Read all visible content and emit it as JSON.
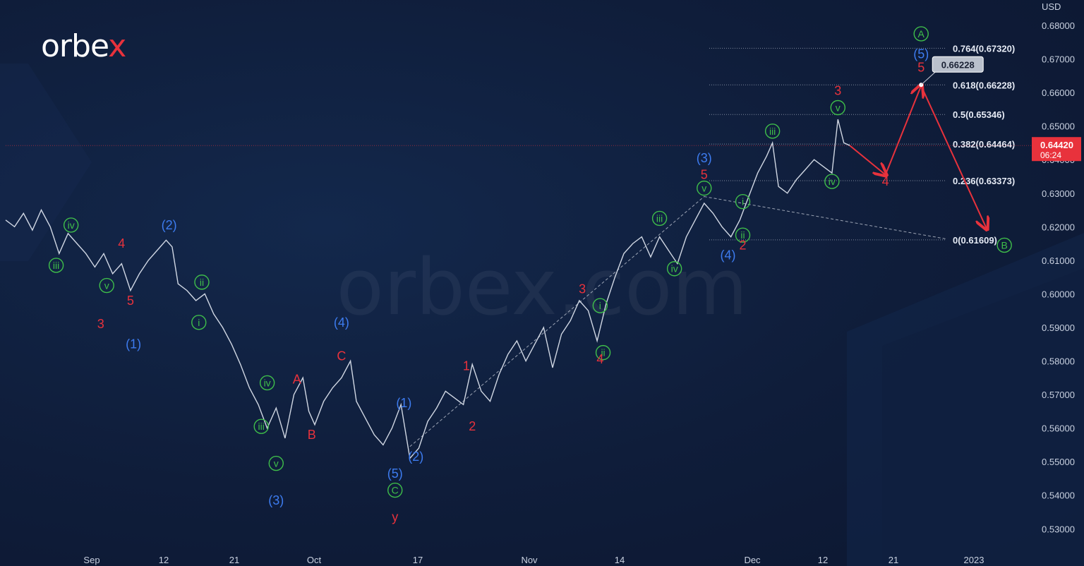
{
  "brand": {
    "logo_pre": "orbe",
    "logo_x": "x",
    "watermark": "orbex.com"
  },
  "colors": {
    "background": "#0f1d3a",
    "price_line": "#e6ebf5",
    "wave_green": "#3fbf4a",
    "wave_blue": "#3d7cf0",
    "wave_red": "#e8323c",
    "price_badge": "#e8323c",
    "fib_line": "#9aa3b5"
  },
  "chart_data": {
    "type": "line",
    "title": "",
    "currency": "USD",
    "ylim": [
      0.525,
      0.685
    ],
    "y_ticks": [
      "0.68000",
      "0.67000",
      "0.66000",
      "0.65000",
      "0.64000",
      "0.63000",
      "0.62000",
      "0.61000",
      "0.60000",
      "0.59000",
      "0.58000",
      "0.57000",
      "0.56000",
      "0.55000",
      "0.54000",
      "0.53000"
    ],
    "x_ticks": [
      "Sep",
      "12",
      "21",
      "Oct",
      "17",
      "Nov",
      "14",
      "Dec",
      "12",
      "21",
      "2023"
    ],
    "current_price": "0.64420",
    "countdown": "06:24",
    "marker_price": "0.66228",
    "price_series": [
      {
        "t": 0,
        "p": 0.622
      },
      {
        "t": 3,
        "p": 0.62
      },
      {
        "t": 6,
        "p": 0.624
      },
      {
        "t": 9,
        "p": 0.619
      },
      {
        "t": 12,
        "p": 0.625
      },
      {
        "t": 15,
        "p": 0.62
      },
      {
        "t": 18,
        "p": 0.612
      },
      {
        "t": 21,
        "p": 0.618
      },
      {
        "t": 24,
        "p": 0.615
      },
      {
        "t": 27,
        "p": 0.612
      },
      {
        "t": 30,
        "p": 0.608
      },
      {
        "t": 33,
        "p": 0.612
      },
      {
        "t": 36,
        "p": 0.606
      },
      {
        "t": 39,
        "p": 0.609
      },
      {
        "t": 42,
        "p": 0.601
      },
      {
        "t": 45,
        "p": 0.606
      },
      {
        "t": 48,
        "p": 0.61
      },
      {
        "t": 51,
        "p": 0.613
      },
      {
        "t": 54,
        "p": 0.616
      },
      {
        "t": 56,
        "p": 0.614
      },
      {
        "t": 58,
        "p": 0.603
      },
      {
        "t": 61,
        "p": 0.601
      },
      {
        "t": 64,
        "p": 0.598
      },
      {
        "t": 67,
        "p": 0.6
      },
      {
        "t": 70,
        "p": 0.594
      },
      {
        "t": 73,
        "p": 0.59
      },
      {
        "t": 76,
        "p": 0.585
      },
      {
        "t": 79,
        "p": 0.579
      },
      {
        "t": 82,
        "p": 0.572
      },
      {
        "t": 85,
        "p": 0.567
      },
      {
        "t": 88,
        "p": 0.56
      },
      {
        "t": 91,
        "p": 0.566
      },
      {
        "t": 94,
        "p": 0.557
      },
      {
        "t": 97,
        "p": 0.57
      },
      {
        "t": 100,
        "p": 0.575
      },
      {
        "t": 102,
        "p": 0.565
      },
      {
        "t": 104,
        "p": 0.561
      },
      {
        "t": 107,
        "p": 0.568
      },
      {
        "t": 110,
        "p": 0.572
      },
      {
        "t": 113,
        "p": 0.575
      },
      {
        "t": 116,
        "p": 0.58
      },
      {
        "t": 118,
        "p": 0.568
      },
      {
        "t": 121,
        "p": 0.563
      },
      {
        "t": 124,
        "p": 0.558
      },
      {
        "t": 127,
        "p": 0.555
      },
      {
        "t": 130,
        "p": 0.56
      },
      {
        "t": 133,
        "p": 0.567
      },
      {
        "t": 136,
        "p": 0.551
      },
      {
        "t": 139,
        "p": 0.554
      },
      {
        "t": 142,
        "p": 0.562
      },
      {
        "t": 145,
        "p": 0.566
      },
      {
        "t": 148,
        "p": 0.571
      },
      {
        "t": 151,
        "p": 0.569
      },
      {
        "t": 154,
        "p": 0.567
      },
      {
        "t": 157,
        "p": 0.579
      },
      {
        "t": 160,
        "p": 0.571
      },
      {
        "t": 163,
        "p": 0.568
      },
      {
        "t": 166,
        "p": 0.576
      },
      {
        "t": 169,
        "p": 0.582
      },
      {
        "t": 172,
        "p": 0.586
      },
      {
        "t": 175,
        "p": 0.58
      },
      {
        "t": 178,
        "p": 0.585
      },
      {
        "t": 181,
        "p": 0.59
      },
      {
        "t": 184,
        "p": 0.578
      },
      {
        "t": 187,
        "p": 0.588
      },
      {
        "t": 190,
        "p": 0.592
      },
      {
        "t": 193,
        "p": 0.598
      },
      {
        "t": 196,
        "p": 0.595
      },
      {
        "t": 199,
        "p": 0.586
      },
      {
        "t": 202,
        "p": 0.597
      },
      {
        "t": 205,
        "p": 0.605
      },
      {
        "t": 208,
        "p": 0.612
      },
      {
        "t": 211,
        "p": 0.615
      },
      {
        "t": 214,
        "p": 0.617
      },
      {
        "t": 217,
        "p": 0.611
      },
      {
        "t": 220,
        "p": 0.617
      },
      {
        "t": 223,
        "p": 0.613
      },
      {
        "t": 226,
        "p": 0.609
      },
      {
        "t": 229,
        "p": 0.617
      },
      {
        "t": 232,
        "p": 0.622
      },
      {
        "t": 235,
        "p": 0.627
      },
      {
        "t": 238,
        "p": 0.624
      },
      {
        "t": 241,
        "p": 0.62
      },
      {
        "t": 244,
        "p": 0.617
      },
      {
        "t": 247,
        "p": 0.622
      },
      {
        "t": 250,
        "p": 0.629
      },
      {
        "t": 253,
        "p": 0.636
      },
      {
        "t": 256,
        "p": 0.641
      },
      {
        "t": 258,
        "p": 0.645
      },
      {
        "t": 260,
        "p": 0.632
      },
      {
        "t": 263,
        "p": 0.63
      },
      {
        "t": 266,
        "p": 0.634
      },
      {
        "t": 269,
        "p": 0.637
      },
      {
        "t": 272,
        "p": 0.64
      },
      {
        "t": 275,
        "p": 0.638
      },
      {
        "t": 278,
        "p": 0.636
      },
      {
        "t": 280,
        "p": 0.652
      },
      {
        "t": 282,
        "p": 0.645
      },
      {
        "t": 284,
        "p": 0.6442
      }
    ],
    "fib_levels": [
      {
        "ratio": "0.764",
        "value": 0.6732,
        "label": "0.764(0.67320)"
      },
      {
        "ratio": "0.618",
        "value": 0.66228,
        "label": "0.618(0.66228)"
      },
      {
        "ratio": "0.5",
        "value": 0.65346,
        "label": "0.5(0.65346)"
      },
      {
        "ratio": "0.382",
        "value": 0.64464,
        "label": "0.382(0.64464)"
      },
      {
        "ratio": "0.236",
        "value": 0.63373,
        "label": "0.236(0.63373)"
      },
      {
        "ratio": "0",
        "value": 0.61609,
        "label": "0(0.61609)"
      }
    ],
    "projection": [
      {
        "t": 284,
        "p": 0.6442
      },
      {
        "t": 296,
        "p": 0.6355
      },
      {
        "t": 308,
        "p": 0.662
      },
      {
        "t": 330,
        "p": 0.6195
      }
    ],
    "wave_labels": [
      {
        "text": "iv",
        "color": "green",
        "circle": true,
        "t": 22,
        "p": 0.6205
      },
      {
        "text": "iii",
        "color": "green",
        "circle": true,
        "t": 17,
        "p": 0.6085
      },
      {
        "text": "v",
        "color": "green",
        "circle": true,
        "t": 34,
        "p": 0.6025
      },
      {
        "text": "4",
        "color": "red",
        "circle": false,
        "t": 39,
        "p": 0.615
      },
      {
        "text": "3",
        "color": "red",
        "circle": false,
        "t": 32,
        "p": 0.591
      },
      {
        "text": "5",
        "color": "red",
        "circle": false,
        "t": 42,
        "p": 0.598
      },
      {
        "text": "(1)",
        "color": "blue",
        "circle": false,
        "t": 43,
        "p": 0.585
      },
      {
        "text": "(2)",
        "color": "blue",
        "circle": false,
        "t": 55,
        "p": 0.6205
      },
      {
        "text": "ii",
        "color": "green",
        "circle": true,
        "t": 66,
        "p": 0.6035
      },
      {
        "text": "i",
        "color": "green",
        "circle": true,
        "t": 65,
        "p": 0.5915
      },
      {
        "text": "iv",
        "color": "green",
        "circle": true,
        "t": 88,
        "p": 0.5735
      },
      {
        "text": "iii",
        "color": "green",
        "circle": true,
        "t": 86,
        "p": 0.5605
      },
      {
        "text": "v",
        "color": "green",
        "circle": true,
        "t": 91,
        "p": 0.5495
      },
      {
        "text": "(3)",
        "color": "blue",
        "circle": false,
        "t": 91,
        "p": 0.5385
      },
      {
        "text": "A",
        "color": "red",
        "circle": false,
        "t": 98,
        "p": 0.5745
      },
      {
        "text": "B",
        "color": "red",
        "circle": false,
        "t": 103,
        "p": 0.558
      },
      {
        "text": "(4)",
        "color": "blue",
        "circle": false,
        "t": 113,
        "p": 0.5915
      },
      {
        "text": "C",
        "color": "red",
        "circle": false,
        "t": 113,
        "p": 0.5815
      },
      {
        "text": "(1)",
        "color": "blue",
        "circle": false,
        "t": 134,
        "p": 0.5675
      },
      {
        "text": "(2)",
        "color": "blue",
        "circle": false,
        "t": 138,
        "p": 0.5515
      },
      {
        "text": "(5)",
        "color": "blue",
        "circle": false,
        "t": 131,
        "p": 0.5465
      },
      {
        "text": "C",
        "color": "green",
        "circle": true,
        "t": 131,
        "p": 0.5415
      },
      {
        "text": "y",
        "color": "red",
        "circle": false,
        "t": 131,
        "p": 0.5335
      },
      {
        "text": "1",
        "color": "red",
        "circle": false,
        "t": 155,
        "p": 0.5785
      },
      {
        "text": "2",
        "color": "red",
        "circle": false,
        "t": 157,
        "p": 0.5605
      },
      {
        "text": "3",
        "color": "red",
        "circle": false,
        "t": 194,
        "p": 0.6015
      },
      {
        "text": "i",
        "color": "green",
        "circle": true,
        "t": 200,
        "p": 0.5965
      },
      {
        "text": "ii",
        "color": "green",
        "circle": true,
        "t": 201,
        "p": 0.5825
      },
      {
        "text": "4",
        "color": "red",
        "circle": false,
        "t": 200,
        "p": 0.5805
      },
      {
        "text": "iii",
        "color": "green",
        "circle": true,
        "t": 220,
        "p": 0.6225
      },
      {
        "text": "iv",
        "color": "green",
        "circle": true,
        "t": 225,
        "p": 0.6075
      },
      {
        "text": "v",
        "color": "green",
        "circle": true,
        "t": 235,
        "p": 0.6315
      },
      {
        "text": "5",
        "color": "red",
        "circle": false,
        "t": 235,
        "p": 0.6355
      },
      {
        "text": "(3)",
        "color": "blue",
        "circle": false,
        "t": 235,
        "p": 0.6405
      },
      {
        "text": "i",
        "color": "green",
        "circle": true,
        "t": 248,
        "p": 0.6275
      },
      {
        "text": "ii",
        "color": "green",
        "circle": true,
        "t": 248,
        "p": 0.6175
      },
      {
        "text": "2",
        "color": "red",
        "circle": false,
        "t": 248,
        "p": 0.6145
      },
      {
        "text": "(4)",
        "color": "blue",
        "circle": false,
        "t": 243,
        "p": 0.6115
      },
      {
        "text": "iii",
        "color": "green",
        "circle": true,
        "t": 258,
        "p": 0.6485
      },
      {
        "text": "v",
        "color": "green",
        "circle": true,
        "t": 280,
        "p": 0.6555
      },
      {
        "text": "3",
        "color": "red",
        "circle": false,
        "t": 280,
        "p": 0.6605
      },
      {
        "text": "iv",
        "color": "green",
        "circle": true,
        "t": 278,
        "p": 0.6335
      },
      {
        "text": "4",
        "color": "red",
        "circle": false,
        "t": 296,
        "p": 0.6335
      },
      {
        "text": "A",
        "color": "green",
        "circle": true,
        "t": 308,
        "p": 0.6775
      },
      {
        "text": "(5)",
        "color": "blue",
        "circle": false,
        "t": 308,
        "p": 0.6715
      },
      {
        "text": "5",
        "color": "red",
        "circle": false,
        "t": 308,
        "p": 0.6675
      },
      {
        "text": "B",
        "color": "green",
        "circle": true,
        "t": 336,
        "p": 0.6145
      }
    ]
  }
}
